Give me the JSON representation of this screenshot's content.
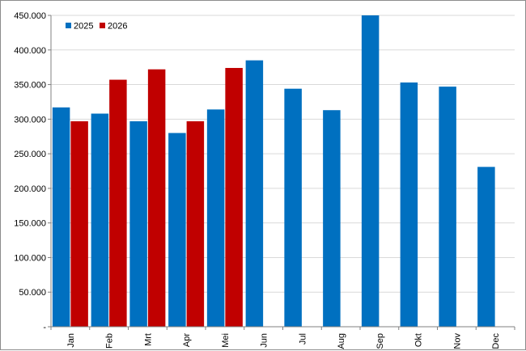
{
  "chart_data": {
    "type": "bar",
    "categories": [
      "Jan",
      "Feb",
      "Mrt",
      "Apr",
      "Mei",
      "Jun",
      "Jul",
      "Aug",
      "Sep",
      "Okt",
      "Nov",
      "Dec"
    ],
    "series": [
      {
        "name": "2025",
        "color": "#0070c0",
        "values": [
          317000,
          308000,
          297000,
          280000,
          314000,
          385000,
          344000,
          313000,
          450000,
          353000,
          347000,
          231000
        ]
      },
      {
        "name": "2026",
        "color": "#c00000",
        "values": [
          297000,
          357000,
          372000,
          297000,
          374000,
          null,
          null,
          null,
          null,
          null,
          null,
          null
        ]
      }
    ],
    "yticks": [
      0,
      50000,
      100000,
      150000,
      200000,
      250000,
      300000,
      350000,
      400000,
      450000
    ],
    "ytick_labels": [
      "-",
      "50.000",
      "100.000",
      "150.000",
      "200.000",
      "250.000",
      "300.000",
      "350.000",
      "400.000",
      "450.000"
    ],
    "ylim": [
      0,
      450000
    ],
    "grid": true,
    "legend_position": "top-left",
    "xtick_rotation": "vertical",
    "title": "",
    "xlabel": "",
    "ylabel": ""
  }
}
